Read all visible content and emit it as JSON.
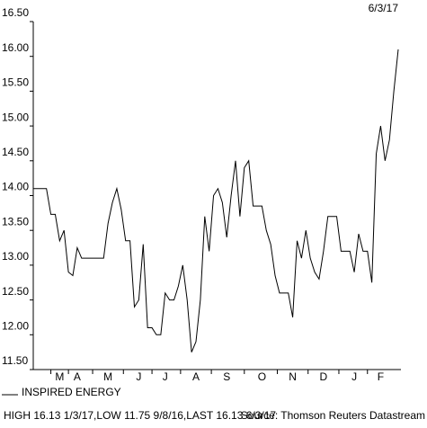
{
  "chart_data": {
    "type": "line",
    "date": "6/3/17",
    "categories": [
      null,
      null,
      null,
      null,
      null,
      null,
      "M",
      null,
      null,
      null,
      "A",
      null,
      null,
      null,
      null,
      null,
      null,
      "M",
      null,
      null,
      null,
      null,
      null,
      null,
      "J",
      null,
      null,
      null,
      null,
      null,
      "J",
      null,
      null,
      null,
      null,
      null,
      null,
      "A",
      null,
      null,
      null,
      null,
      null,
      null,
      "S",
      null,
      null,
      null,
      null,
      null,
      null,
      null,
      "O",
      null,
      null,
      null,
      null,
      null,
      null,
      "N",
      null,
      null,
      null,
      null,
      null,
      null,
      "D",
      null,
      null,
      null,
      null,
      null,
      null,
      "J",
      null,
      null,
      null,
      null,
      null,
      "F",
      null,
      null,
      null,
      null
    ],
    "series": [
      {
        "name": "INSPIRED ENERGY",
        "color": "#000000",
        "values": [
          14.1,
          14.1,
          14.1,
          14.1,
          13.73,
          13.73,
          13.35,
          13.5,
          12.9,
          12.85,
          13.25,
          13.1,
          13.1,
          13.1,
          13.1,
          13.1,
          13.1,
          13.6,
          13.9,
          14.1,
          13.8,
          13.35,
          13.35,
          12.4,
          12.5,
          13.3,
          12.1,
          12.1,
          12.0,
          12.0,
          12.6,
          12.5,
          12.5,
          12.7,
          13.0,
          12.5,
          11.75,
          11.9,
          12.5,
          13.7,
          13.2,
          14.0,
          14.1,
          13.9,
          13.4,
          14.0,
          14.5,
          13.7,
          14.4,
          14.5,
          13.85,
          13.85,
          13.85,
          13.5,
          13.3,
          12.85,
          12.6,
          12.6,
          12.6,
          12.25,
          13.35,
          13.1,
          13.5,
          13.1,
          12.9,
          12.8,
          13.2,
          13.7,
          13.7,
          13.7,
          13.2,
          13.2,
          13.2,
          12.9,
          13.45,
          13.2,
          13.2,
          12.75,
          14.6,
          15.0,
          14.5,
          14.8,
          15.5,
          16.1
        ]
      }
    ],
    "ylim": [
      11.5,
      16.5
    ],
    "yticks": [
      {
        "value": 11.5,
        "label": "11.50"
      },
      {
        "value": 12,
        "label": "12.00"
      },
      {
        "value": 12.5,
        "label": "12.50"
      },
      {
        "value": 13,
        "label": "13.00"
      },
      {
        "value": 13.5,
        "label": "13.50"
      },
      {
        "value": 14,
        "label": "14.00"
      },
      {
        "value": 14.5,
        "label": "14.50"
      },
      {
        "value": 15,
        "label": "15.00"
      },
      {
        "value": 15.5,
        "label": "15.50"
      },
      {
        "value": 16,
        "label": "16.00"
      },
      {
        "value": 16.5,
        "label": "16.50"
      }
    ],
    "footer": "HIGH 16.13 1/3/17,LOW 11.75 9/8/16,LAST 16.13 6/3/17",
    "source": "Source: Thomson Reuters Datastream"
  }
}
